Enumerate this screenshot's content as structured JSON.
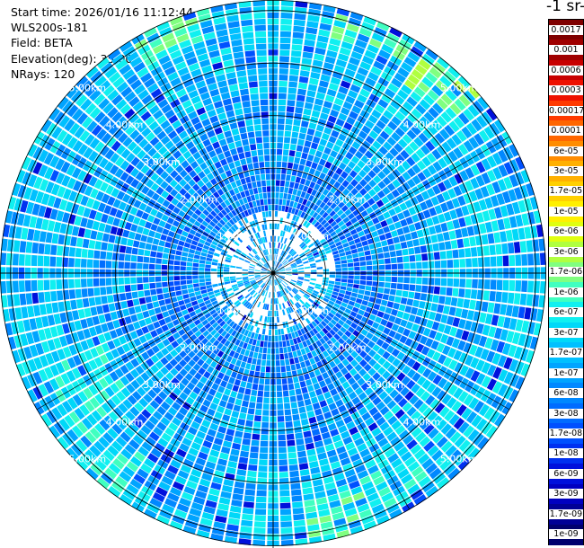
{
  "info": {
    "start_time": "Start time: 2026/01/16 11:12:44",
    "instrument": "WLS200s-181",
    "field": "Field: BETA",
    "elevation": "Elevation(deg): 35.00",
    "nrays": "NRays: 120"
  },
  "chart_data": {
    "type": "heatmap",
    "projection": "polar-ppi",
    "n_rays": 120,
    "range_rings_km": [
      1,
      2,
      3,
      4,
      5
    ],
    "max_range_km": 5.2,
    "ring_labels": [
      "1.00km",
      "2.00km",
      "3.00km",
      "4.00km",
      "5.00km"
    ],
    "colorbar": {
      "title": "-1 sr-",
      "scale": "log",
      "labels_top_to_bottom": [
        "0.0017",
        "0.001",
        "0.0006",
        "0.0003",
        "0.00017",
        "0.0001",
        "6e-05",
        "3e-05",
        "1.7e-05",
        "1e-05",
        "6e-06",
        "3e-06",
        "1.7e-06",
        "1e-06",
        "6e-07",
        "3e-07",
        "1.7e-07",
        "1e-07",
        "6e-08",
        "3e-08",
        "1.7e-08",
        "1e-08",
        "6e-09",
        "3e-09",
        "1.7e-09",
        "1e-09"
      ],
      "colors_top_to_bottom": [
        "#7f0000",
        "#a00000",
        "#c80000",
        "#ee1100",
        "#ff3a00",
        "#ff6600",
        "#ff8c00",
        "#ffb000",
        "#ffd000",
        "#fff000",
        "#e0ff10",
        "#b0ff40",
        "#80ff80",
        "#40ffc0",
        "#10f0f0",
        "#00d8f8",
        "#00c0ff",
        "#00a4ff",
        "#0088ff",
        "#006cff",
        "#0050ff",
        "#0030f0",
        "#0010dc",
        "#0000c0",
        "#000096",
        "#00006e"
      ]
    },
    "hotspots": [
      {
        "azimuth_deg": 255,
        "range_km": [
          3.8,
          5.1
        ],
        "level": 8
      },
      {
        "azimuth_deg": 238,
        "range_km": [
          3.6,
          4.9
        ],
        "level": 10
      },
      {
        "azimuth_deg": 222,
        "range_km": [
          4.3,
          5.2
        ],
        "level": 10
      },
      {
        "azimuth_deg": 150,
        "range_km": [
          4.2,
          5.1
        ],
        "level": 10
      },
      {
        "azimuth_deg": 165,
        "range_km": [
          4.4,
          5.2
        ],
        "level": 11
      },
      {
        "azimuth_deg": 42,
        "range_km": [
          4.4,
          5.2
        ],
        "level": 12
      },
      {
        "azimuth_deg": 22,
        "range_km": [
          4.6,
          5.2
        ],
        "level": 11
      },
      {
        "azimuth_deg": 338,
        "range_km": [
          4.6,
          5.2
        ],
        "level": 11
      }
    ]
  }
}
